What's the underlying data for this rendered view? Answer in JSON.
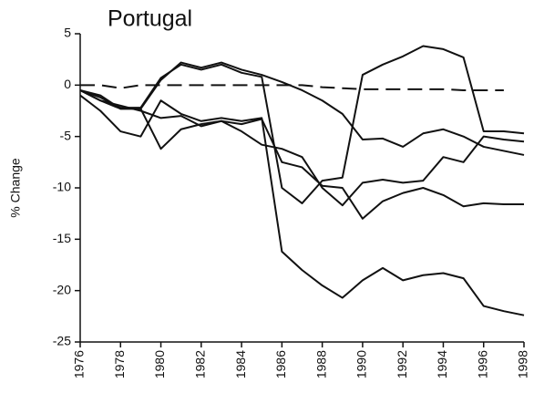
{
  "chart_data": {
    "type": "line",
    "title": "Portugal",
    "ylabel": "% Change",
    "x": [
      1976,
      1977,
      1978,
      1979,
      1980,
      1981,
      1982,
      1983,
      1984,
      1985,
      1986,
      1987,
      1988,
      1989,
      1990,
      1991,
      1992,
      1993,
      1994,
      1995,
      1996,
      1997,
      1998
    ],
    "series": [
      {
        "color": "#111111",
        "values": [
          -0.5,
          -1,
          -2.3,
          -2.3,
          0.5,
          2.2,
          1.7,
          2.2,
          1.5,
          1,
          0.3,
          -0.5,
          -1.5,
          -2.8,
          -5.3,
          -5.2,
          -6,
          -4.7,
          -4.3,
          -5,
          -6,
          -6.4,
          -6.8
        ]
      },
      {
        "color": "#111111",
        "values": [
          -0.5,
          -1.2,
          -2.2,
          -2.2,
          0.7,
          2,
          1.5,
          2,
          1.2,
          0.8,
          -10,
          -11.5,
          -9.3,
          -9,
          1,
          2,
          2.8,
          3.8,
          3.5,
          2.7,
          -4.5,
          -4.5,
          -4.7
        ]
      },
      {
        "color": "#111111",
        "values": [
          -1,
          -2.5,
          -4.5,
          -5,
          -1.5,
          -2.8,
          -3.5,
          -3.2,
          -3.5,
          -3.2,
          -16.2,
          -18,
          -19.5,
          -20.7,
          -19,
          -17.8,
          -19,
          -18.5,
          -18.3,
          -18.8,
          -21.5,
          -22,
          -22.4
        ]
      },
      {
        "color": "#111111",
        "values": [
          -0.5,
          -1.5,
          -2,
          -2.5,
          -3.2,
          -3,
          -4,
          -3.5,
          -4.5,
          -5.8,
          -6.2,
          -7,
          -10,
          -11.7,
          -9.5,
          -9.2,
          -9.5,
          -9.3,
          -7,
          -7.5,
          -5,
          -5.3,
          -5.5
        ]
      },
      {
        "color": "#111111",
        "values": [
          -0.5,
          -1.5,
          -2.3,
          -2.3,
          -6.2,
          -4.3,
          -3.8,
          -3.5,
          -3.8,
          -3.3,
          -7.5,
          -8,
          -9.8,
          -10,
          -13,
          -11.3,
          -10.5,
          -10,
          -10.7,
          -11.8,
          -11.5,
          -11.6,
          -11.6
        ]
      },
      {
        "color": "#111111",
        "dashed": true,
        "values": [
          0,
          0,
          -0.3,
          0,
          0,
          0,
          0,
          0,
          0,
          0,
          0,
          0,
          -0.2,
          -0.3,
          -0.4,
          -0.4,
          -0.4,
          -0.4,
          -0.4,
          -0.5,
          -0.5,
          -0.5,
          null
        ]
      }
    ],
    "xlim": [
      1976,
      1998
    ],
    "xticks": [
      1976,
      1978,
      1980,
      1982,
      1984,
      1986,
      1988,
      1990,
      1992,
      1994,
      1996,
      1998
    ],
    "ylim": [
      -25,
      5
    ],
    "yticks": [
      5,
      0,
      -5,
      -10,
      -15,
      -20,
      -25
    ]
  }
}
